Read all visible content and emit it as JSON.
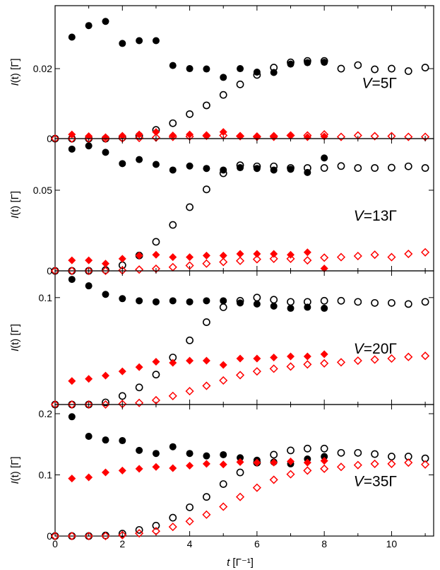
{
  "chart_data": [
    {
      "type": "scatter",
      "panel_label": {
        "prefix": "V",
        "suffix": "=5Γ"
      },
      "ylabel": {
        "pre": "I",
        "post": "(t) [Γ]"
      },
      "xlim": [
        0,
        11.25
      ],
      "ylim": [
        0,
        0.038
      ],
      "yticks": [
        0,
        0.02
      ],
      "ytick_labels": [
        "0",
        "0.02"
      ],
      "series": [
        {
          "marker": "filled-circle",
          "color": "#000000",
          "x": [
            0.5,
            1,
            1.5,
            2,
            2.5,
            3,
            3.5,
            4,
            4.5,
            5,
            5.5,
            6,
            6.5,
            7,
            7.5,
            8
          ],
          "y": [
            0.029,
            0.0323,
            0.0335,
            0.0272,
            0.028,
            0.028,
            0.0209,
            0.02,
            0.0199,
            0.0175,
            0.02,
            0.019,
            0.0189,
            0.0213,
            0.0217,
            0.0218
          ]
        },
        {
          "marker": "open-circle",
          "color": "#000000",
          "x": [
            0,
            0.5,
            1,
            1.5,
            2,
            2.5,
            3,
            3.5,
            4,
            4.5,
            5,
            5.5,
            6,
            6.5,
            7,
            7.5,
            8,
            8.5,
            9,
            9.5,
            10,
            10.5,
            11
          ],
          "y": [
            0,
            0,
            0,
            0,
            0.0003,
            0.0008,
            0.0025,
            0.0044,
            0.007,
            0.0095,
            0.0125,
            0.0155,
            0.0182,
            0.0203,
            0.0218,
            0.0222,
            0.0222,
            0.02,
            0.021,
            0.0198,
            0.02,
            0.0193,
            0.0203
          ]
        },
        {
          "marker": "filled-diamond",
          "color": "#ff0000",
          "x": [
            0.5,
            1,
            1.5,
            2,
            2.5,
            3,
            3.5,
            4,
            4.5,
            5,
            5.5,
            6,
            6.5,
            7,
            7.5,
            8
          ],
          "y": [
            0.0012,
            0.0007,
            0.0004,
            0.0008,
            0.0012,
            0.0019,
            0.0009,
            0.0012,
            0.001,
            0.0019,
            0.0008,
            0.0004,
            0.0004,
            0.0009,
            0.0004,
            0.0006
          ]
        },
        {
          "marker": "open-diamond",
          "color": "#ff0000",
          "x": [
            0,
            0.5,
            1,
            1.5,
            2,
            2.5,
            3,
            3.5,
            4,
            4.5,
            5,
            5.5,
            6,
            6.5,
            7,
            7.5,
            8,
            8.5,
            9,
            9.5,
            10,
            10.5,
            11
          ],
          "y": [
            0,
            0,
            0,
            0,
            0.0001,
            0.0002,
            0.0003,
            0.0005,
            0.0006,
            0.0008,
            0.0009,
            0.0007,
            0.0006,
            0.0007,
            0.0009,
            0.0009,
            0.0012,
            0.0005,
            0.0009,
            0.0007,
            0.0007,
            0.0005,
            0.0005
          ]
        }
      ]
    },
    {
      "type": "scatter",
      "panel_label": {
        "prefix": "V",
        "suffix": "=13Γ"
      },
      "ylabel": {
        "pre": "I",
        "post": "(t) [Γ]"
      },
      "xlim": [
        0,
        11.25
      ],
      "ylim": [
        0,
        0.082
      ],
      "yticks": [
        0,
        0.05
      ],
      "ytick_labels": [
        "0",
        "0.05"
      ],
      "series": [
        {
          "marker": "filled-circle",
          "color": "#000000",
          "x": [
            0.5,
            1,
            1.5,
            2,
            2.5,
            3,
            3.5,
            4,
            4.5,
            5,
            5.5,
            6,
            6.5,
            7,
            7.5,
            8
          ],
          "y": [
            0.0755,
            0.0775,
            0.0735,
            0.0665,
            0.069,
            0.066,
            0.0625,
            0.065,
            0.0635,
            0.0625,
            0.064,
            0.0635,
            0.0625,
            0.063,
            0.061,
            0.07
          ]
        },
        {
          "marker": "open-circle",
          "color": "#000000",
          "x": [
            0,
            0.5,
            1,
            1.5,
            2,
            2.5,
            3,
            3.5,
            4,
            4.5,
            5,
            5.5,
            6,
            6.5,
            7,
            7.5,
            8,
            8.5,
            9,
            9.5,
            10,
            10.5,
            11
          ],
          "y": [
            0,
            0,
            0,
            0.0005,
            0.0035,
            0.0095,
            0.018,
            0.0285,
            0.0395,
            0.0505,
            0.0605,
            0.0655,
            0.0648,
            0.0648,
            0.0638,
            0.0638,
            0.0638,
            0.065,
            0.0638,
            0.0638,
            0.064,
            0.0648,
            0.0638
          ]
        },
        {
          "marker": "filled-diamond",
          "color": "#ff0000",
          "x": [
            0.5,
            1,
            1.5,
            2,
            2.5,
            3,
            3.5,
            4,
            4.5,
            5,
            5.5,
            6,
            6.5,
            7,
            7.5,
            8
          ],
          "y": [
            0.0065,
            0.0065,
            0.0045,
            0.0075,
            0.0095,
            0.01,
            0.0085,
            0.0085,
            0.0095,
            0.0095,
            0.0105,
            0.0105,
            0.0105,
            0.01,
            0.0115,
            0.0015
          ]
        },
        {
          "marker": "open-diamond",
          "color": "#ff0000",
          "x": [
            0,
            0.5,
            1,
            1.5,
            2,
            2.5,
            3,
            3.5,
            4,
            4.5,
            5,
            5.5,
            6,
            6.5,
            7,
            7.5,
            8,
            8.5,
            9,
            9.5,
            10,
            10.5,
            11
          ],
          "y": [
            0,
            0,
            0,
            0,
            0.0003,
            0.0008,
            0.0013,
            0.0023,
            0.0033,
            0.0045,
            0.0055,
            0.0062,
            0.0072,
            0.0075,
            0.0075,
            0.0065,
            0.0082,
            0.0085,
            0.0092,
            0.01,
            0.0085,
            0.0105,
            0.0115
          ]
        }
      ]
    },
    {
      "type": "scatter",
      "panel_label": {
        "prefix": "V",
        "suffix": "=20Γ"
      },
      "ylabel": {
        "pre": "I",
        "post": "(t) [Γ]"
      },
      "xlim": [
        0,
        11.25
      ],
      "ylim": [
        0,
        0.125
      ],
      "yticks": [
        0.1
      ],
      "ytick_labels": [
        "0.1"
      ],
      "series": [
        {
          "marker": "filled-circle",
          "color": "#000000",
          "x": [
            0.5,
            1,
            1.5,
            2,
            2.5,
            3,
            3.5,
            4,
            4.5,
            5,
            5.5,
            6,
            6.5,
            7,
            7.5,
            8
          ],
          "y": [
            0.117,
            0.111,
            0.103,
            0.099,
            0.097,
            0.096,
            0.097,
            0.096,
            0.097,
            0.097,
            0.095,
            0.094,
            0.092,
            0.09,
            0.091,
            0.09
          ]
        },
        {
          "marker": "open-circle",
          "color": "#000000",
          "x": [
            0,
            0.5,
            1,
            1.5,
            2,
            2.5,
            3,
            3.5,
            4,
            4.5,
            5,
            5.5,
            6,
            6.5,
            7,
            7.5,
            8,
            8.5,
            9,
            9.5,
            10,
            10.5,
            11
          ],
          "y": [
            0,
            0,
            0,
            0.002,
            0.008,
            0.016,
            0.028,
            0.044,
            0.06,
            0.077,
            0.091,
            0.097,
            0.1,
            0.098,
            0.096,
            0.096,
            0.097,
            0.097,
            0.096,
            0.095,
            0.095,
            0.094,
            0.096
          ]
        },
        {
          "marker": "filled-diamond",
          "color": "#ff0000",
          "x": [
            0.5,
            1,
            1.5,
            2,
            2.5,
            3,
            3.5,
            4,
            4.5,
            5,
            5.5,
            6,
            6.5,
            7,
            7.5,
            8
          ],
          "y": [
            0.022,
            0.024,
            0.027,
            0.031,
            0.035,
            0.04,
            0.039,
            0.041,
            0.041,
            0.037,
            0.043,
            0.043,
            0.044,
            0.045,
            0.045,
            0.047
          ]
        },
        {
          "marker": "open-diamond",
          "color": "#ff0000",
          "x": [
            0,
            0.5,
            1,
            1.5,
            2,
            2.5,
            3,
            3.5,
            4,
            4.5,
            5,
            5.5,
            6,
            6.5,
            7,
            7.5,
            8,
            8.5,
            9,
            9.5,
            10,
            10.5,
            11
          ],
          "y": [
            0,
            0,
            0,
            0,
            0.0005,
            0.0015,
            0.004,
            0.008,
            0.0125,
            0.0175,
            0.0225,
            0.0275,
            0.031,
            0.0335,
            0.0355,
            0.0375,
            0.0385,
            0.0395,
            0.041,
            0.042,
            0.043,
            0.0445,
            0.0455
          ]
        }
      ]
    },
    {
      "type": "scatter",
      "panel_label": {
        "prefix": "V",
        "suffix": "=35Γ"
      },
      "ylabel": {
        "pre": "I",
        "post": "(t) [Γ]"
      },
      "xlabel": {
        "pre": "t",
        "post": " [Γ⁻¹]"
      },
      "xlim": [
        0,
        11.25
      ],
      "ylim": [
        0,
        0.215
      ],
      "yticks": [
        0,
        0.1,
        0.2
      ],
      "ytick_labels": [
        "0",
        "0.1",
        "0.2"
      ],
      "xticks": [
        0,
        2,
        4,
        6,
        8,
        10
      ],
      "xtick_labels": [
        "0",
        "2",
        "4",
        "6",
        "8",
        "10"
      ],
      "series": [
        {
          "marker": "filled-circle",
          "color": "#000000",
          "x": [
            0.5,
            1,
            1.5,
            2,
            2.5,
            3,
            3.5,
            4,
            4.5,
            5,
            5.5,
            6,
            6.5,
            7,
            7.5,
            8
          ],
          "y": [
            0.195,
            0.163,
            0.157,
            0.156,
            0.14,
            0.135,
            0.146,
            0.135,
            0.131,
            0.133,
            0.128,
            0.124,
            0.121,
            0.118,
            0.126,
            0.13
          ]
        },
        {
          "marker": "open-circle",
          "color": "#000000",
          "x": [
            0,
            0.5,
            1,
            1.5,
            2,
            2.5,
            3,
            3.5,
            4,
            4.5,
            5,
            5.5,
            6,
            6.5,
            7,
            7.5,
            8,
            8.5,
            9,
            9.5,
            10,
            10.5,
            11
          ],
          "y": [
            0,
            0,
            0,
            0.001,
            0.004,
            0.01,
            0.017,
            0.03,
            0.047,
            0.064,
            0.085,
            0.104,
            0.12,
            0.133,
            0.14,
            0.143,
            0.143,
            0.136,
            0.136,
            0.134,
            0.13,
            0.13,
            0.127
          ]
        },
        {
          "marker": "filled-diamond",
          "color": "#ff0000",
          "x": [
            0.5,
            1,
            1.5,
            2,
            2.5,
            3,
            3.5,
            4,
            4.5,
            5,
            5.5,
            6,
            6.5,
            7,
            7.5,
            8
          ],
          "y": [
            0.094,
            0.096,
            0.104,
            0.107,
            0.11,
            0.113,
            0.111,
            0.115,
            0.118,
            0.117,
            0.121,
            0.12,
            0.12,
            0.122,
            0.12,
            0.123
          ]
        },
        {
          "marker": "open-diamond",
          "color": "#ff0000",
          "x": [
            0,
            0.5,
            1,
            1.5,
            2,
            2.5,
            3,
            3.5,
            4,
            4.5,
            5,
            5.5,
            6,
            6.5,
            7,
            7.5,
            8,
            8.5,
            9,
            9.5,
            10,
            10.5,
            11
          ],
          "y": [
            0,
            0,
            0,
            0,
            0.0015,
            0.0045,
            0.008,
            0.015,
            0.024,
            0.035,
            0.048,
            0.064,
            0.079,
            0.092,
            0.101,
            0.107,
            0.11,
            0.113,
            0.116,
            0.118,
            0.118,
            0.12,
            0.117
          ]
        }
      ]
    }
  ]
}
